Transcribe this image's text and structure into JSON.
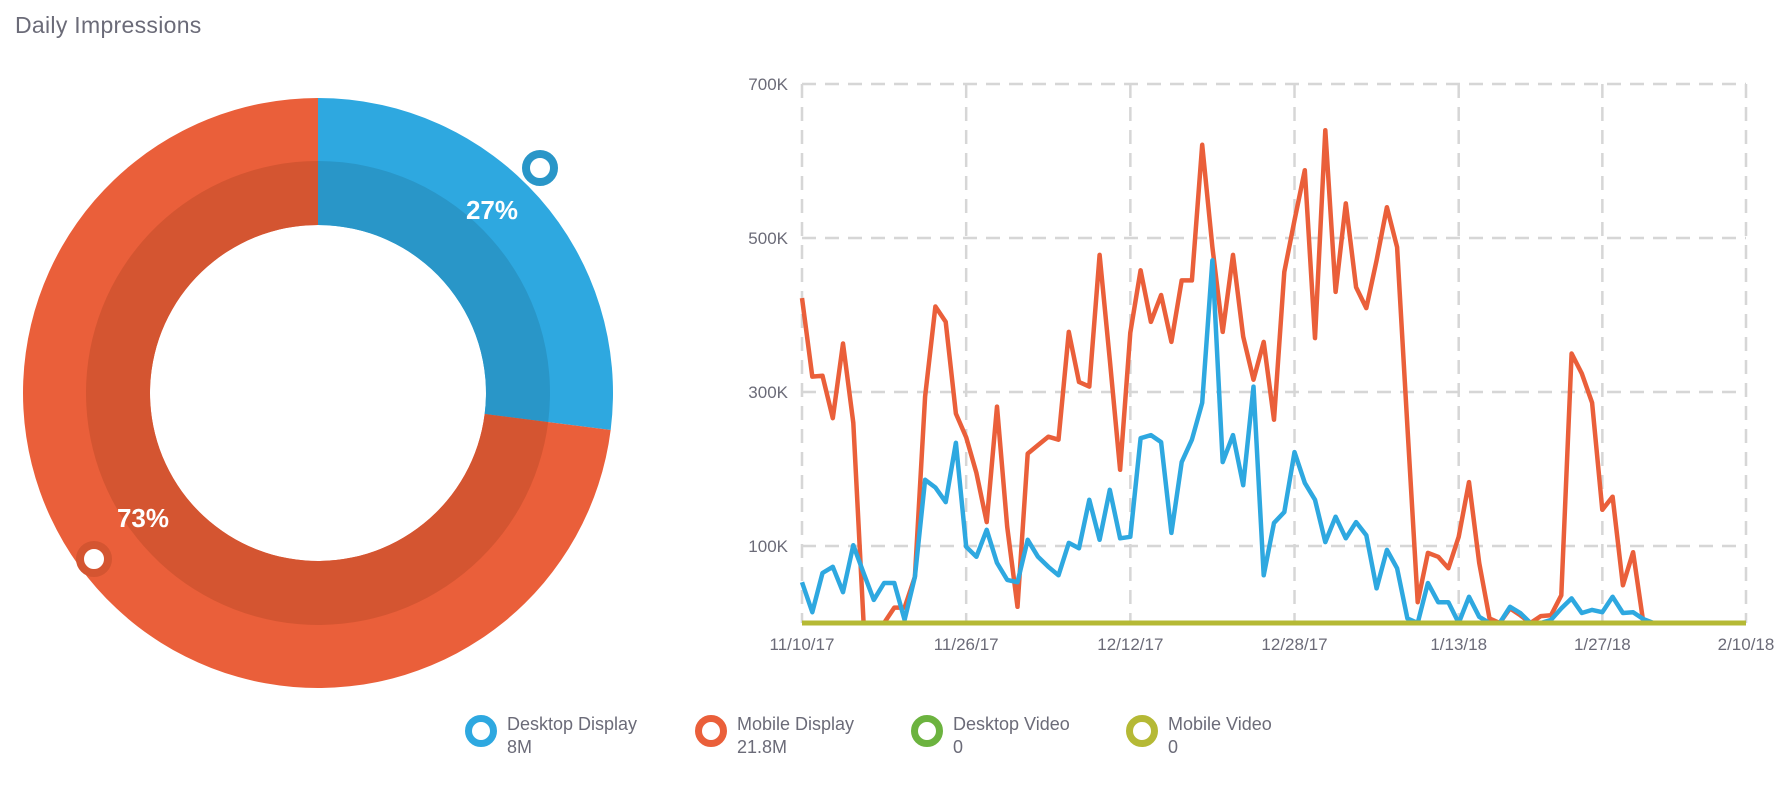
{
  "title": "Daily Impressions",
  "colors": {
    "desktop_display": "#2ea8e0",
    "desktop_display_dark": "#2996c8",
    "mobile_display": "#ea5f3a",
    "mobile_display_dark": "#d45531",
    "desktop_video": "#6cb33f",
    "mobile_video": "#b5b935",
    "grid": "#d6d6d6",
    "text": "#6b6b78"
  },
  "chart_data": [
    {
      "type": "pie",
      "variant": "donut",
      "slices": [
        {
          "name": "Desktop Display",
          "percent": 27,
          "label": "27%"
        },
        {
          "name": "Mobile Display",
          "percent": 73,
          "label": "73%"
        }
      ]
    },
    {
      "type": "line",
      "x_start_date": "11/10/17",
      "x_step": "1 day",
      "xlim_days": [
        0,
        92
      ],
      "ylim": [
        0,
        700000
      ],
      "y_ticks": [
        {
          "value": 100000,
          "label": "100K"
        },
        {
          "value": 300000,
          "label": "300K"
        },
        {
          "value": 500000,
          "label": "500K"
        },
        {
          "value": 700000,
          "label": "700K"
        }
      ],
      "x_ticks": [
        {
          "day": 0,
          "label": "11/10/17"
        },
        {
          "day": 16,
          "label": "11/26/17"
        },
        {
          "day": 32,
          "label": "12/12/17"
        },
        {
          "day": 48,
          "label": "12/28/17"
        },
        {
          "day": 64,
          "label": "1/13/18"
        },
        {
          "day": 78,
          "label": "1/27/18"
        },
        {
          "day": 92,
          "label": "2/10/18"
        }
      ],
      "grid": "dashed",
      "series": [
        {
          "name": "Mobile Display",
          "color_key": "mobile_display",
          "values_k": [
            422,
            320,
            321,
            266,
            363,
            260,
            0,
            0,
            0,
            20,
            20,
            60,
            294,
            411,
            391,
            272,
            241,
            195,
            131,
            281,
            125,
            21,
            220,
            231,
            242,
            238,
            378,
            313,
            307,
            478,
            342,
            199,
            377,
            458,
            391,
            426,
            365,
            445,
            445,
            621,
            488,
            378,
            478,
            372,
            316,
            365,
            264,
            456,
            523,
            588,
            370,
            640,
            430,
            545,
            436,
            409,
            471,
            540,
            488,
            255,
            27,
            91,
            86,
            71,
            112,
            183,
            78,
            6,
            0,
            19,
            10,
            0,
            9,
            10,
            36,
            350,
            324,
            286,
            147,
            164,
            49,
            92,
            0
          ]
        },
        {
          "name": "Desktop Display",
          "color_key": "desktop_display",
          "values_k": [
            53,
            14,
            65,
            73,
            40,
            101,
            65,
            30,
            52,
            52,
            4,
            60,
            186,
            176,
            157,
            234,
            99,
            86,
            121,
            78,
            56,
            53,
            108,
            86,
            73,
            62,
            104,
            97,
            160,
            108,
            173,
            110,
            112,
            240,
            244,
            235,
            117,
            209,
            238,
            286,
            471,
            209,
            244,
            179,
            307,
            62,
            130,
            144,
            222,
            182,
            160,
            105,
            138,
            110,
            131,
            114,
            45,
            95,
            71,
            6,
            0,
            52,
            27,
            27,
            0,
            34,
            8,
            0,
            0,
            21,
            13,
            0,
            0,
            4,
            19,
            32,
            13,
            17,
            14,
            34,
            13,
            14,
            5,
            0
          ]
        },
        {
          "name": "Desktop Video",
          "color_key": "desktop_video",
          "values_k": [
            0,
            0
          ]
        },
        {
          "name": "Mobile Video",
          "color_key": "mobile_video",
          "values_k": [
            0,
            0
          ]
        }
      ]
    }
  ],
  "legend": [
    {
      "label": "Desktop Display",
      "value": "8M",
      "color_key": "desktop_display"
    },
    {
      "label": "Mobile Display",
      "value": "21.8M",
      "color_key": "mobile_display"
    },
    {
      "label": "Desktop Video",
      "value": "0",
      "color_key": "desktop_video"
    },
    {
      "label": "Mobile Video",
      "value": "0",
      "color_key": "mobile_video"
    }
  ]
}
